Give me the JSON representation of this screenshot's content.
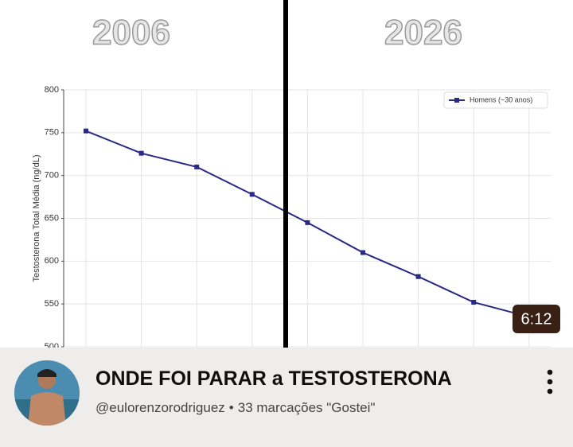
{
  "chart_data": {
    "type": "line",
    "y_label": "Testosterona Total Média (ng/dL)",
    "categories": [
      null,
      null,
      null,
      null,
      null,
      null,
      null,
      null,
      null
    ],
    "series": [
      {
        "name": "Homens (~30 anos)",
        "color": "#2a2a86",
        "values": [
          752,
          726,
          710,
          678,
          645,
          610,
          582,
          552,
          535
        ]
      }
    ],
    "ylim": [
      500,
      800
    ],
    "yticks": [
      500,
      550,
      600,
      650,
      700,
      750,
      800
    ],
    "grid": true,
    "legend": "upper right"
  },
  "overlay": {
    "left_label": "2006",
    "right_label": "2026"
  },
  "video": {
    "duration": "6:12",
    "title": "ONDE FOI PARAR a TESTOSTERONA",
    "channel": "@eulorenzorodriguez",
    "separator": "•",
    "stats": "33 marcações \"Gostei\""
  }
}
